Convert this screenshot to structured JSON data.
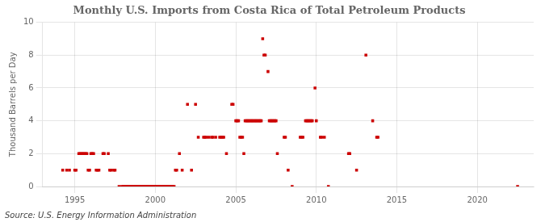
{
  "chart_data": {
    "type": "scatter",
    "title": "Monthly U.S. Imports from Costa Rica of Total Petroleum Products",
    "ylabel": "Thousand Barrels per Day",
    "source": "Source: U.S. Energy Information Administration",
    "color": "#cc0000",
    "marker": "square",
    "grid": true,
    "xlim": [
      1993.0,
      2023.5
    ],
    "xticks": [
      1995,
      2000,
      2005,
      2010,
      2015,
      2020
    ],
    "ylim": [
      0,
      10
    ],
    "yticks": [
      0,
      2,
      4,
      6,
      8,
      10
    ],
    "x": [
      1994.25,
      1994.5,
      1994.67,
      1995.0,
      1995.08,
      1995.25,
      1995.33,
      1995.42,
      1995.5,
      1995.58,
      1995.67,
      1995.75,
      1995.83,
      1995.92,
      1996.0,
      1996.08,
      1996.17,
      1996.33,
      1996.42,
      1996.5,
      1996.75,
      1996.83,
      1997.08,
      1997.17,
      1997.25,
      1997.42,
      1997.5,
      1997.75,
      1997.92,
      1998.0,
      1998.08,
      1998.17,
      1998.25,
      1998.33,
      1998.42,
      1998.5,
      1998.58,
      1998.67,
      1998.75,
      1998.83,
      1998.92,
      1999.0,
      1999.08,
      1999.17,
      1999.25,
      1999.33,
      1999.42,
      1999.5,
      1999.58,
      1999.67,
      1999.75,
      1999.83,
      1999.92,
      2000.0,
      2000.08,
      2000.17,
      2000.25,
      2000.33,
      2000.42,
      2000.5,
      2000.58,
      2000.67,
      2000.75,
      2000.83,
      2000.92,
      2001.0,
      2001.08,
      2001.17,
      2001.25,
      2001.33,
      2001.5,
      2001.67,
      2002.0,
      2002.25,
      2002.5,
      2002.67,
      2003.0,
      2003.08,
      2003.17,
      2003.33,
      2003.5,
      2003.58,
      2003.75,
      2004.0,
      2004.08,
      2004.17,
      2004.25,
      2004.42,
      2004.75,
      2004.83,
      2005.0,
      2005.08,
      2005.17,
      2005.25,
      2005.33,
      2005.42,
      2005.5,
      2005.58,
      2005.67,
      2005.75,
      2005.83,
      2005.92,
      2006.0,
      2006.08,
      2006.17,
      2006.25,
      2006.33,
      2006.42,
      2006.5,
      2006.58,
      2006.67,
      2006.75,
      2006.83,
      2007.0,
      2007.08,
      2007.17,
      2007.25,
      2007.33,
      2007.42,
      2007.5,
      2007.58,
      2008.0,
      2008.08,
      2008.25,
      2008.5,
      2009.0,
      2009.08,
      2009.17,
      2009.33,
      2009.42,
      2009.5,
      2009.58,
      2009.67,
      2009.75,
      2009.92,
      2010.0,
      2010.25,
      2010.33,
      2010.5,
      2010.75,
      2012.0,
      2012.08,
      2012.5,
      2013.08,
      2013.5,
      2013.75,
      2013.83,
      2022.5
    ],
    "values": [
      1,
      1,
      1,
      1,
      1,
      2,
      2,
      2,
      2,
      2,
      2,
      2,
      1,
      1,
      2,
      2,
      2,
      1,
      1,
      1,
      2,
      2,
      2,
      1,
      1,
      1,
      1,
      0,
      0,
      0,
      0,
      0,
      0,
      0,
      0,
      0,
      0,
      0,
      0,
      0,
      0,
      0,
      0,
      0,
      0,
      0,
      0,
      0,
      0,
      0,
      0,
      0,
      0,
      0,
      0,
      0,
      0,
      0,
      0,
      0,
      0,
      0,
      0,
      0,
      0,
      0,
      0,
      0,
      1,
      1,
      2,
      1,
      5,
      1,
      5,
      3,
      3,
      3,
      3,
      3,
      3,
      3,
      3,
      3,
      3,
      3,
      3,
      2,
      5,
      5,
      4,
      4,
      4,
      3,
      3,
      3,
      2,
      4,
      4,
      4,
      4,
      4,
      4,
      4,
      4,
      4,
      4,
      4,
      4,
      4,
      9,
      8,
      8,
      7,
      4,
      4,
      4,
      4,
      4,
      4,
      2,
      3,
      3,
      1,
      0,
      3,
      3,
      3,
      4,
      4,
      4,
      4,
      4,
      4,
      6,
      4,
      3,
      3,
      3,
      0,
      2,
      2,
      1,
      8,
      4,
      3,
      3,
      0
    ]
  }
}
